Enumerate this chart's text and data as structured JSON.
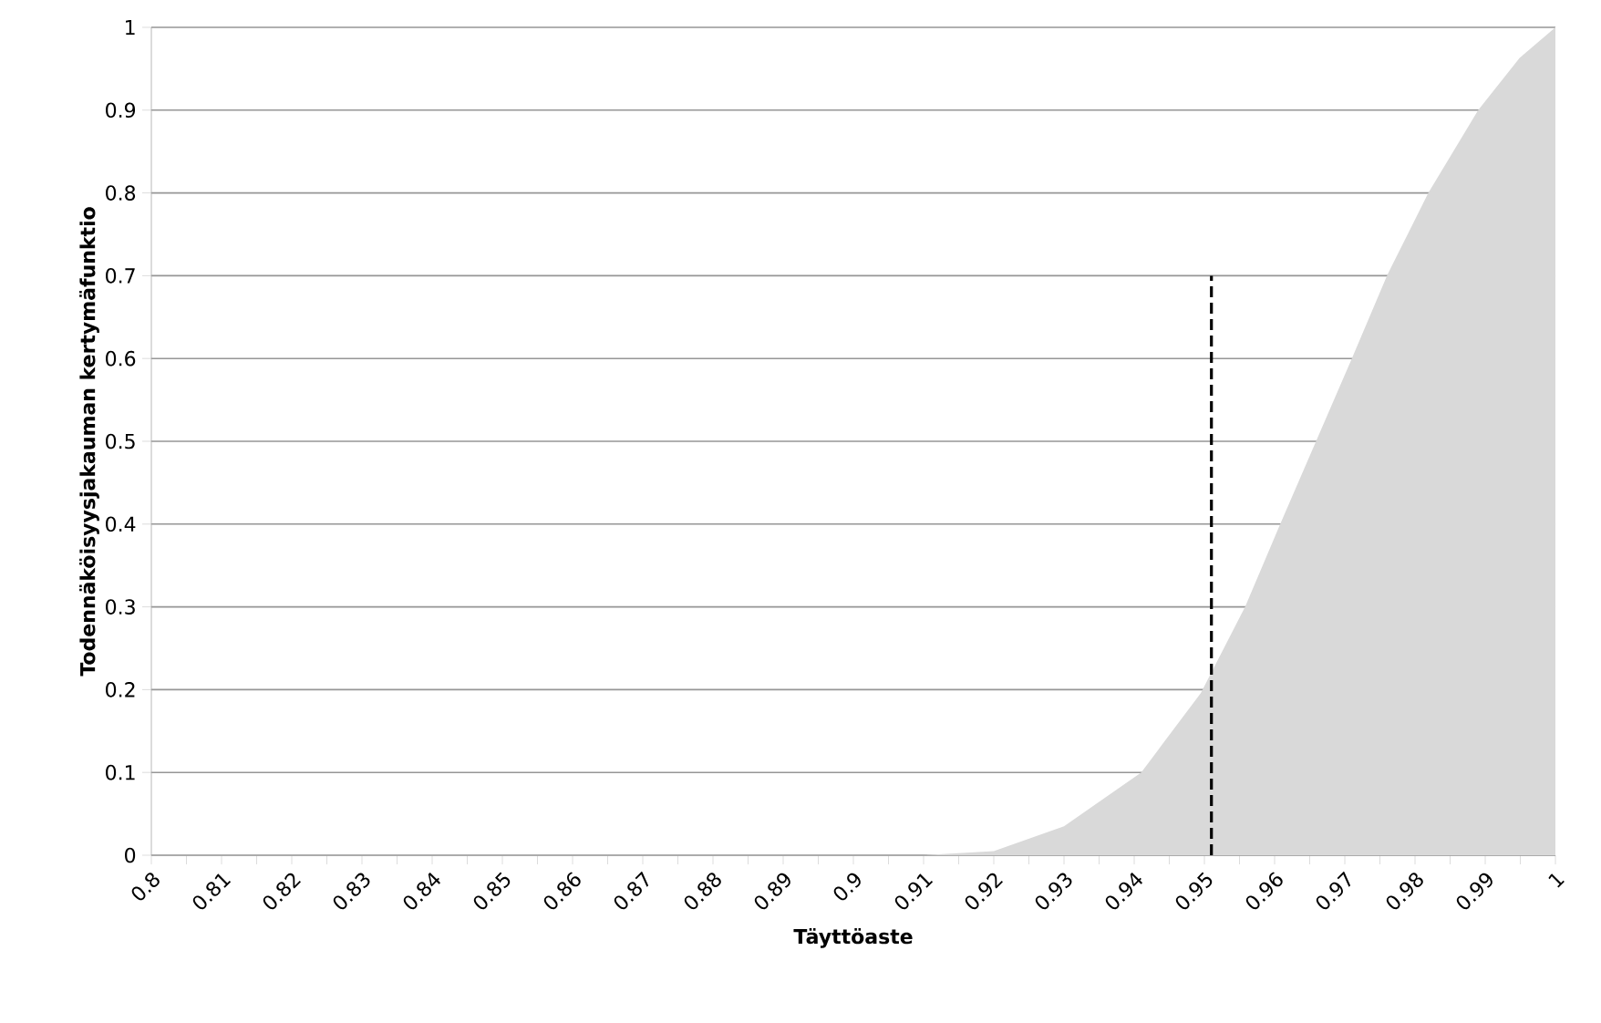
{
  "chart_data": {
    "type": "area",
    "xlabel": "Täyttöaste",
    "ylabel": "Todennäköisyysjakauman kertymäfunktio",
    "xlim": [
      0.8,
      1
    ],
    "ylim": [
      0,
      1
    ],
    "xticks": [
      0.8,
      0.81,
      0.82,
      0.83,
      0.84,
      0.85,
      0.86,
      0.87,
      0.88,
      0.89,
      0.9,
      0.91,
      0.92,
      0.93,
      0.94,
      0.95,
      0.96,
      0.97,
      0.98,
      0.99,
      1
    ],
    "yticks": [
      0,
      0.1,
      0.2,
      0.3,
      0.4,
      0.5,
      0.6,
      0.7,
      0.8,
      0.9,
      1
    ],
    "grid": "y",
    "series": [
      {
        "color": "#d9d9d9",
        "x": [
          0.8,
          0.85,
          0.9,
          0.91,
          0.92,
          0.93,
          0.941,
          0.9495,
          0.9558,
          0.9608,
          0.9659,
          0.971,
          0.976,
          0.9819,
          0.989,
          0.9949,
          1
        ],
        "values": [
          0,
          0,
          0,
          0,
          0.005,
          0.035,
          0.1,
          0.196,
          0.3,
          0.4,
          0.5,
          0.6,
          0.7,
          0.8,
          0.9,
          0.963,
          1
        ]
      },
      {
        "type": "line",
        "color": "#000000",
        "line_style": "dashed",
        "x": [
          0.951,
          0.951
        ],
        "values": [
          0,
          0.7
        ]
      }
    ]
  }
}
